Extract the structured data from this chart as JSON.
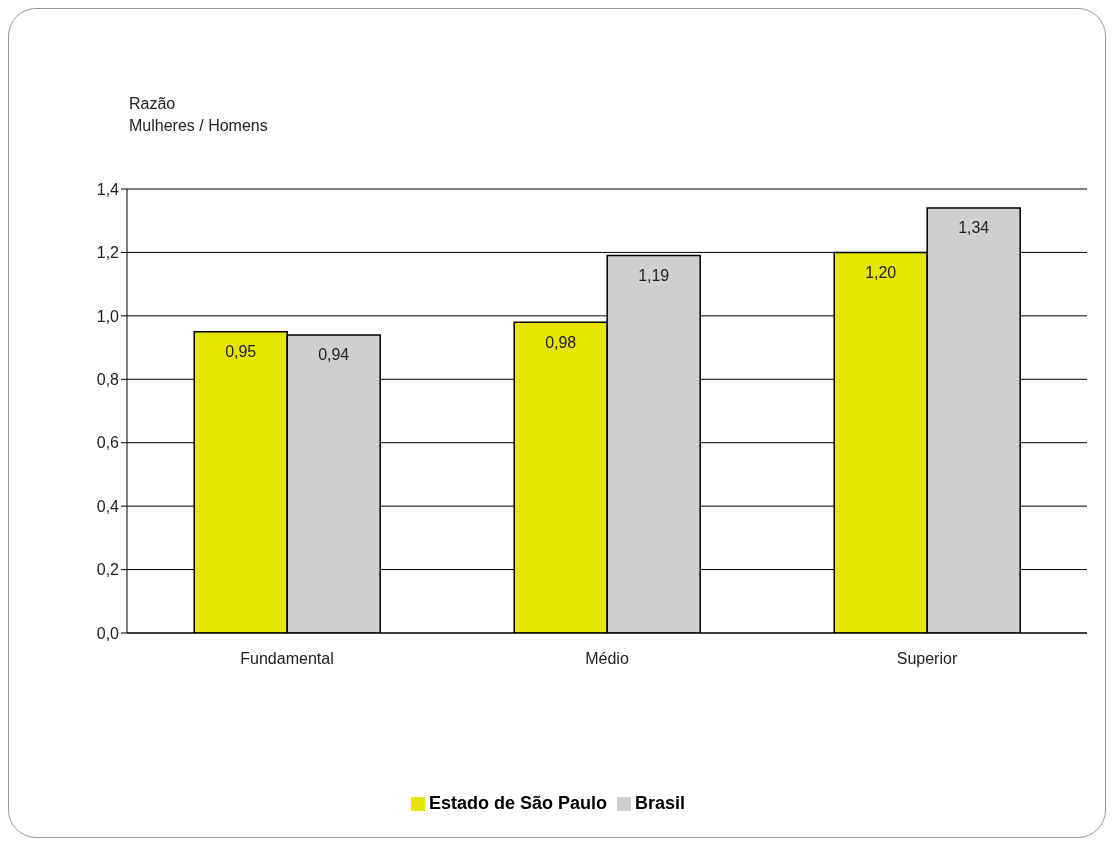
{
  "chart_data": {
    "type": "bar",
    "ylabel": "Razão\nMulheres / Homens",
    "categories": [
      "Fundamental",
      "Médio",
      "Superior"
    ],
    "series": [
      {
        "name": "Estado de São Paulo",
        "color": "#e6e600",
        "values": [
          0.95,
          0.98,
          1.2
        ],
        "value_labels": [
          "0,95",
          "0,98",
          "1,20"
        ]
      },
      {
        "name": "Brasil",
        "color": "#cfcfcf",
        "values": [
          0.94,
          1.19,
          1.34
        ],
        "value_labels": [
          "0,94",
          "1,19",
          "1,34"
        ]
      }
    ],
    "ylim": [
      0,
      1.4
    ],
    "yticks": [
      {
        "value": 0,
        "label": "0,0"
      },
      {
        "value": 0.2,
        "label": "0,2"
      },
      {
        "value": 0.4,
        "label": "0,4"
      },
      {
        "value": 0.6,
        "label": "0,6"
      },
      {
        "value": 0.8,
        "label": "0,8"
      },
      {
        "value": 1.0,
        "label": "1,0"
      },
      {
        "value": 1.2,
        "label": "1,2"
      },
      {
        "value": 1.4,
        "label": "1,4"
      }
    ],
    "grid": "y",
    "legend": "bottom"
  }
}
